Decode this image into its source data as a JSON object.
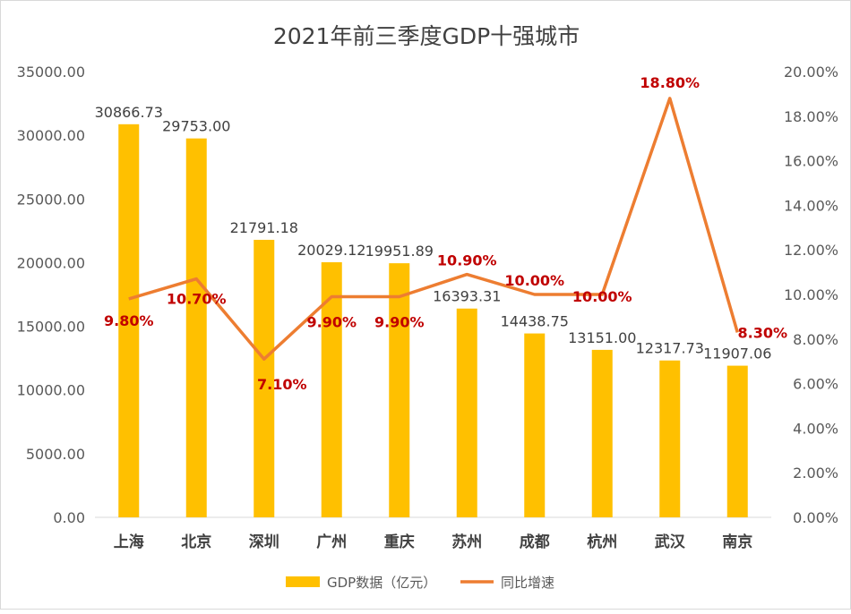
{
  "chart_data": {
    "type": "bar+line",
    "title": "2021年前三季度GDP十强城市",
    "categories": [
      "上海",
      "北京",
      "深圳",
      "广州",
      "重庆",
      "苏州",
      "成都",
      "杭州",
      "武汉",
      "南京"
    ],
    "series": [
      {
        "name": "GDP数据（亿元）",
        "type": "bar",
        "axis": "left",
        "color": "#FFC000",
        "values": [
          30866.73,
          29753.0,
          21791.18,
          20029.12,
          19951.89,
          16393.31,
          14438.75,
          13151.0,
          12317.73,
          11907.06
        ],
        "labels": [
          "30866.73",
          "29753.00",
          "21791.18",
          "20029.12",
          "19951.89",
          "16393.31",
          "14438.75",
          "13151.00",
          "12317.73",
          "11907.06"
        ]
      },
      {
        "name": "同比增速",
        "type": "line",
        "axis": "right",
        "color": "#ED7D31",
        "values": [
          9.8,
          10.7,
          7.1,
          9.9,
          9.9,
          10.9,
          10.0,
          10.0,
          18.8,
          8.3
        ],
        "labels": [
          "9.80%",
          "10.70%",
          "7.10%",
          "9.90%",
          "9.90%",
          "10.90%",
          "10.00%",
          "10.00%",
          "18.80%",
          "8.30%"
        ],
        "label_color": "#C00000"
      }
    ],
    "y_left": {
      "range": [
        0,
        35000
      ],
      "ticks": [
        "0.00",
        "5000.00",
        "10000.00",
        "15000.00",
        "20000.00",
        "25000.00",
        "30000.00",
        "35000.00"
      ]
    },
    "y_right": {
      "range": [
        0,
        20
      ],
      "ticks": [
        "0.00%",
        "2.00%",
        "4.00%",
        "6.00%",
        "8.00%",
        "10.00%",
        "12.00%",
        "14.00%",
        "16.00%",
        "18.00%",
        "20.00%"
      ]
    },
    "grid": false,
    "legend": "bottom"
  }
}
